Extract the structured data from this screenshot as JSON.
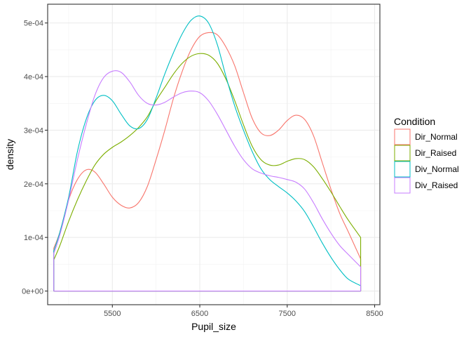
{
  "chart_data": {
    "type": "line",
    "subtype": "density",
    "title": "",
    "xlabel": "Pupil_size",
    "ylabel": "density",
    "xlim": [
      4760,
      8560
    ],
    "ylim": [
      -2.55e-05,
      0.000535
    ],
    "x_ticks": [
      5500,
      6500,
      7500,
      8500
    ],
    "x_tick_labels": [
      "5500",
      "6500",
      "7500",
      "8500"
    ],
    "y_ticks": [
      0,
      0.0001,
      0.0002,
      0.0003,
      0.0004,
      0.0005
    ],
    "y_tick_labels": [
      "0e+00",
      "1e-04",
      "2e-04",
      "3e-04",
      "4e-04",
      "5e-04"
    ],
    "grid": true,
    "legend": {
      "title": "Condition",
      "position": "right"
    },
    "series": [
      {
        "name": "Dir_Normal",
        "color": "#F8766D",
        "x": [
          4830,
          4900,
          5000,
          5100,
          5200,
          5300,
          5400,
          5500,
          5600,
          5700,
          5800,
          5900,
          6000,
          6100,
          6200,
          6300,
          6400,
          6500,
          6600,
          6700,
          6800,
          6900,
          7000,
          7100,
          7200,
          7300,
          7400,
          7500,
          7600,
          7700,
          7800,
          7900,
          8000,
          8100,
          8200,
          8340
        ],
        "y": [
          8e-05,
          0.00011,
          0.00017,
          0.000208,
          0.000226,
          0.000222,
          0.0002,
          0.000175,
          0.00016,
          0.000155,
          0.000165,
          0.000195,
          0.000245,
          0.0003,
          0.00036,
          0.00041,
          0.00045,
          0.000475,
          0.000482,
          0.000478,
          0.000455,
          0.00042,
          0.00037,
          0.000322,
          0.000295,
          0.00029,
          0.0003,
          0.000318,
          0.000328,
          0.00032,
          0.00029,
          0.00024,
          0.00019,
          0.000145,
          0.00011,
          6e-05
        ]
      },
      {
        "name": "Dir_Raised",
        "color": "#7CAE00",
        "x": [
          4830,
          4900,
          5000,
          5100,
          5200,
          5300,
          5400,
          5500,
          5600,
          5700,
          5800,
          5900,
          6000,
          6100,
          6200,
          6300,
          6400,
          6500,
          6600,
          6700,
          6800,
          6900,
          7000,
          7100,
          7200,
          7300,
          7400,
          7500,
          7600,
          7700,
          7800,
          7900,
          8000,
          8100,
          8200,
          8340
        ],
        "y": [
          5.8e-05,
          8.5e-05,
          0.00013,
          0.00017,
          0.000205,
          0.000235,
          0.000255,
          0.000268,
          0.000278,
          0.00029,
          0.000305,
          0.000325,
          0.000355,
          0.00038,
          0.000405,
          0.000425,
          0.000438,
          0.000443,
          0.00044,
          0.000425,
          0.000395,
          0.000355,
          0.00031,
          0.00027,
          0.000245,
          0.000235,
          0.000235,
          0.000242,
          0.000247,
          0.000245,
          0.000232,
          0.00021,
          0.000185,
          0.000158,
          0.000132,
          0.0001
        ]
      },
      {
        "name": "Div_Normal",
        "color": "#00BFC4",
        "x": [
          4830,
          4900,
          5000,
          5100,
          5200,
          5300,
          5400,
          5500,
          5600,
          5700,
          5800,
          5900,
          6000,
          6100,
          6200,
          6300,
          6400,
          6500,
          6600,
          6700,
          6800,
          6900,
          7000,
          7100,
          7200,
          7300,
          7400,
          7500,
          7600,
          7700,
          7800,
          7900,
          8000,
          8100,
          8200,
          8340
        ],
        "y": [
          7.5e-05,
          0.00011,
          0.000175,
          0.00026,
          0.00032,
          0.000355,
          0.000365,
          0.000355,
          0.00033,
          0.000308,
          0.000303,
          0.00032,
          0.00036,
          0.000405,
          0.000445,
          0.00048,
          0.000505,
          0.000513,
          0.0005,
          0.00046,
          0.0004,
          0.000345,
          0.0003,
          0.00026,
          0.000228,
          0.000208,
          0.000195,
          0.000183,
          0.000168,
          0.000148,
          0.00012,
          9e-05,
          6.3e-05,
          4e-05,
          2.2e-05,
          1e-05
        ]
      },
      {
        "name": "Div_Raised",
        "color": "#C77CFF",
        "x": [
          4830,
          4900,
          5000,
          5100,
          5200,
          5300,
          5400,
          5500,
          5600,
          5700,
          5800,
          5900,
          6000,
          6100,
          6200,
          6300,
          6400,
          6500,
          6600,
          6700,
          6800,
          6900,
          7000,
          7100,
          7200,
          7300,
          7400,
          7500,
          7600,
          7700,
          7800,
          7900,
          8000,
          8100,
          8200,
          8340
        ],
        "y": [
          7e-05,
          0.000105,
          0.00017,
          0.000245,
          0.00031,
          0.000365,
          0.000398,
          0.00041,
          0.000408,
          0.00039,
          0.000365,
          0.00035,
          0.000347,
          0.000352,
          0.000362,
          0.00037,
          0.000373,
          0.00037,
          0.000355,
          0.00033,
          0.0003,
          0.00027,
          0.000245,
          0.000228,
          0.00022,
          0.000215,
          0.000212,
          0.000208,
          0.000203,
          0.00019,
          0.000165,
          0.000135,
          0.000108,
          8.5e-05,
          6.8e-05,
          4.5e-05
        ]
      }
    ]
  }
}
